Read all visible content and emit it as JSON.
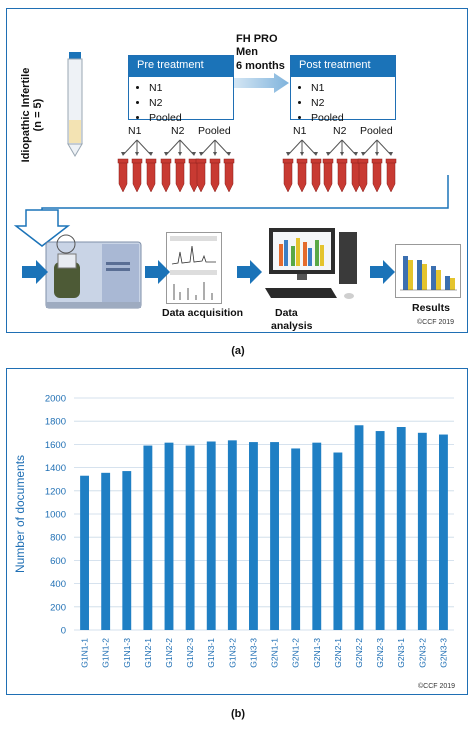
{
  "panel_a": {
    "patients_label": "Idiopathic Infertile",
    "patients_n": "(n = 5)",
    "pre_box": {
      "title": "Pre treatment",
      "items": [
        "N1",
        "N2",
        "Pooled"
      ]
    },
    "post_box": {
      "title": "Post treatment",
      "items": [
        "N1",
        "N2",
        "Pooled"
      ]
    },
    "treatment": {
      "line1": "FH PRO",
      "line2": "Men",
      "line3": "6 months"
    },
    "pre_groups": [
      "N1",
      "N2",
      "Pooled"
    ],
    "post_groups": [
      "N1",
      "N2",
      "Pooled"
    ],
    "steps": {
      "acquisition": "Data acquisition",
      "analysis_l1": "Data",
      "analysis_l2": "analysis",
      "results": "Results"
    },
    "copyright": "©CCF 2019",
    "caption": "(a)"
  },
  "panel_b": {
    "copyright": "©CCF 2019",
    "caption": "(b)"
  },
  "colors": {
    "accent": "#1b73b8",
    "bar": "#1f7fc4",
    "tube": "#c83a32"
  },
  "chart_data": {
    "type": "bar",
    "ylabel": "Number of documents",
    "xlabel": "",
    "ylim": [
      0,
      2000
    ],
    "yticks": [
      0,
      200,
      400,
      600,
      800,
      1000,
      1200,
      1400,
      1600,
      1800,
      2000
    ],
    "grid": true,
    "categories": [
      "G1N1-1",
      "G1N1-2",
      "G1N1-3",
      "G1N2-1",
      "G1N2-2",
      "G1N2-3",
      "G1N3-1",
      "G1N3-2",
      "G1N3-3",
      "G2N1-1",
      "G2N1-2",
      "G2N1-3",
      "G2N2-1",
      "G2N2-2",
      "G2N2-3",
      "G2N3-1",
      "G2N3-2",
      "G2N3-3"
    ],
    "values": [
      1330,
      1355,
      1370,
      1590,
      1615,
      1590,
      1625,
      1635,
      1620,
      1620,
      1565,
      1615,
      1530,
      1765,
      1715,
      1750,
      1700,
      1685
    ]
  }
}
